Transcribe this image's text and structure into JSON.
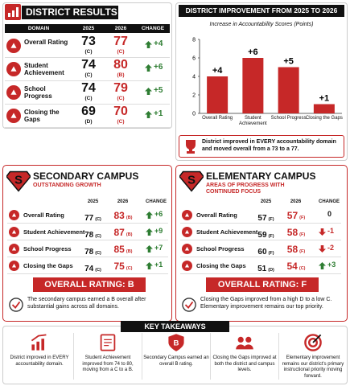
{
  "district": {
    "title": "DISTRICT RESULTS",
    "columns": [
      "DOMAIN",
      "2025",
      "2026",
      "CHANGE"
    ],
    "rows": [
      {
        "domain": "Overall Rating",
        "score_2025": "73",
        "grade_2025": "(C)",
        "score_2026": "77",
        "grade_2026": "(C)",
        "change": "+4"
      },
      {
        "domain": "Student Achievement",
        "score_2025": "74",
        "grade_2025": "(C)",
        "score_2026": "80",
        "grade_2026": "(B)",
        "change": "+6"
      },
      {
        "domain": "School Progress",
        "score_2025": "74",
        "grade_2025": "(C)",
        "score_2026": "79",
        "grade_2026": "(C)",
        "change": "+5"
      },
      {
        "domain": "Closing the Gaps",
        "score_2025": "69",
        "grade_2025": "(D)",
        "score_2026": "70",
        "grade_2026": "(C)",
        "change": "+1"
      }
    ]
  },
  "chart_data": {
    "type": "bar",
    "title": "DISTRICT IMPROVEMENT FROM 2025 TO 2026",
    "subtitle": "Increase in Accountability Scores (Points)",
    "categories": [
      "Overall Rating",
      "Student Achievement",
      "School Progress",
      "Closing the Gaps"
    ],
    "values": [
      4,
      6,
      5,
      1
    ],
    "value_labels": [
      "+4",
      "+6",
      "+5",
      "+1"
    ],
    "color": "#c62828",
    "ylim": [
      0,
      8
    ],
    "yticks": [
      0,
      2,
      4,
      6,
      8
    ],
    "grid": false
  },
  "callout": "District improved in EVERY accountability domain and moved overall from a 73 to a 77.",
  "secondary": {
    "title": "SECONDARY CAMPUS",
    "subtitle": "OUTSTANDING GROWTH",
    "columns": [
      "2025",
      "2026",
      "CHANGE"
    ],
    "rows": [
      {
        "domain": "Overall Rating",
        "score_2025": "77",
        "grade_2025": "(C)",
        "score_2026": "83",
        "grade_2026": "(B)",
        "change": "+6"
      },
      {
        "domain": "Student Achievement",
        "score_2025": "78",
        "grade_2025": "(C)",
        "score_2026": "87",
        "grade_2026": "(B)",
        "change": "+9"
      },
      {
        "domain": "School Progress",
        "score_2025": "78",
        "grade_2025": "(C)",
        "score_2026": "85",
        "grade_2026": "(B)",
        "change": "+7"
      },
      {
        "domain": "Closing the Gaps",
        "score_2025": "74",
        "grade_2025": "(C)",
        "score_2026": "75",
        "grade_2026": "(C)",
        "change": "+1"
      }
    ],
    "rating": "OVERALL RATING: B",
    "note": "The secondary campus earned a B overall after substantial gains across all domains."
  },
  "elementary": {
    "title": "ELEMENTARY CAMPUS",
    "subtitle": "AREAS OF PROGRESS WITH CONTINUED FOCUS",
    "columns": [
      "2025",
      "2026",
      "CHANGE"
    ],
    "rows": [
      {
        "domain": "Overall Rating",
        "score_2025": "57",
        "grade_2025": "(F)",
        "score_2026": "57",
        "grade_2026": "(F)",
        "change": "0"
      },
      {
        "domain": "Student Achievement",
        "score_2025": "59",
        "grade_2025": "(F)",
        "score_2026": "58",
        "grade_2026": "(F)",
        "change": "-1"
      },
      {
        "domain": "School Progress",
        "score_2025": "60",
        "grade_2025": "(F)",
        "score_2026": "58",
        "grade_2026": "(F)",
        "change": "-2"
      },
      {
        "domain": "Closing the Gaps",
        "score_2025": "51",
        "grade_2025": "(D)",
        "score_2026": "54",
        "grade_2026": "(C)",
        "change": "+3"
      }
    ],
    "rating": "OVERALL RATING: F",
    "note": "Closing the Gaps improved from a high D to a low C. Elementary improvement remains our top priority."
  },
  "takeaways": {
    "title": "KEY TAKEAWAYS",
    "items": [
      "District improved in EVERY accountability domain.",
      "Student Achievement improved from 74 to 80, moving from a C to a B.",
      "Secondary Campus earned an overall B rating.",
      "Closing the Gaps improved at both the district and campus levels.",
      "Elementary improvement remains our district's primary instructional priority moving forward."
    ]
  }
}
